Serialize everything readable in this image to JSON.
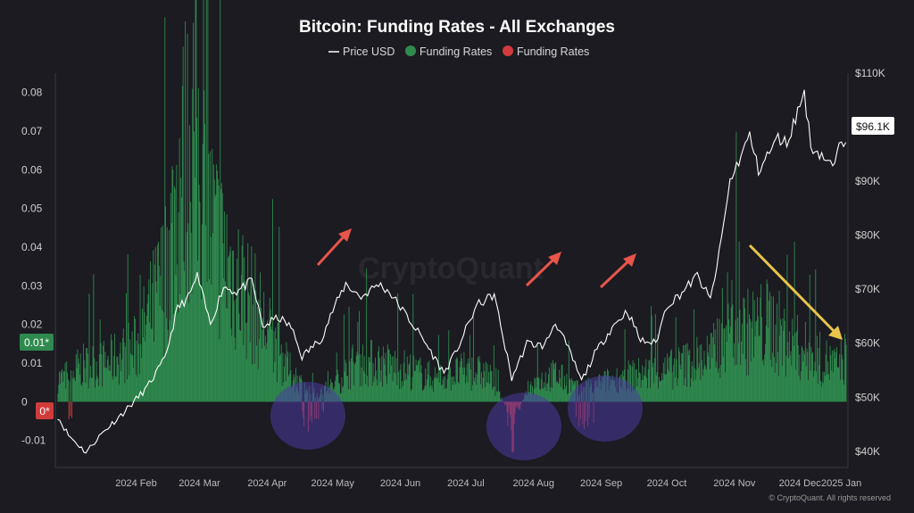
{
  "colors": {
    "background": "#1b1b21",
    "positive": "#2f8a4e",
    "negative": "#d13b3b",
    "price": "#ffffff",
    "circle": "#4b3aa3",
    "red_arrow": "#e8554a",
    "yellow_arrow": "#e8c44a"
  },
  "watermark": "CryptoQuant",
  "copyright": "© CryptoQuant. All rights reserved",
  "chart_data": {
    "type": "bar",
    "title": "Bitcoin: Funding Rates - All Exchanges",
    "legend": {
      "placement": "top-center",
      "items": [
        {
          "label": "Price USD",
          "marker": "line",
          "color": "#ffffff"
        },
        {
          "label": "Funding Rates",
          "marker": "dot",
          "color": "#2f8a4e"
        },
        {
          "label": "Funding Rates",
          "marker": "dot",
          "color": "#d13b3b"
        }
      ]
    },
    "x_ticks": [
      "2024 Feb",
      "2024 Mar",
      "2024 Apr",
      "2024 May",
      "2024 Jun",
      "2024 Jul",
      "2024 Aug",
      "2024 Sep",
      "2024 Oct",
      "2024 Nov",
      "2024 Dec",
      "2025 Jan"
    ],
    "y_left": {
      "ticks": [
        "0.08",
        "0.07",
        "0.06",
        "0.05",
        "0.04",
        "0.03",
        "0.02",
        "0.01",
        "0",
        "-0.01"
      ],
      "range": [
        -0.017,
        0.085
      ]
    },
    "y_right": {
      "ticks": [
        "$110K",
        "$100K",
        "$90K",
        "$80K",
        "$70K",
        "$60K",
        "$50K",
        "$40K"
      ],
      "range": [
        37000,
        110000
      ]
    },
    "left_badges": {
      "positive": "0.01*",
      "negative": "0*"
    },
    "price_badge": "$96.1K",
    "funding_rates_keypoints": [
      [
        "2024-01-12",
        0.006
      ],
      [
        "2024-01-20",
        0.009
      ],
      [
        "2024-02-01",
        0.01
      ],
      [
        "2024-02-15",
        0.014
      ],
      [
        "2024-02-28",
        0.032
      ],
      [
        "2024-03-05",
        0.055
      ],
      [
        "2024-03-12",
        0.07
      ],
      [
        "2024-03-20",
        0.045
      ],
      [
        "2024-03-28",
        0.035
      ],
      [
        "2024-04-05",
        0.028
      ],
      [
        "2024-04-15",
        0.018
      ],
      [
        "2024-04-25",
        0.008
      ],
      [
        "2024-05-05",
        0.002
      ],
      [
        "2024-05-15",
        0.004
      ],
      [
        "2024-05-25",
        0.01
      ],
      [
        "2024-06-05",
        0.01
      ],
      [
        "2024-06-20",
        0.008
      ],
      [
        "2024-07-01",
        0.006
      ],
      [
        "2024-07-15",
        0.008
      ],
      [
        "2024-07-25",
        0.007
      ],
      [
        "2024-08-05",
        -0.004
      ],
      [
        "2024-08-15",
        0.005
      ],
      [
        "2024-08-25",
        0.007
      ],
      [
        "2024-09-05",
        0.003
      ],
      [
        "2024-09-15",
        0.005
      ],
      [
        "2024-10-01",
        0.007
      ],
      [
        "2024-10-15",
        0.008
      ],
      [
        "2024-10-25",
        0.01
      ],
      [
        "2024-11-05",
        0.012
      ],
      [
        "2024-11-12",
        0.022
      ],
      [
        "2024-11-20",
        0.018
      ],
      [
        "2024-12-01",
        0.02
      ],
      [
        "2024-12-10",
        0.015
      ],
      [
        "2024-12-20",
        0.012
      ],
      [
        "2025-01-01",
        0.009
      ],
      [
        "2025-01-05",
        0.012
      ]
    ],
    "price_keypoints": [
      [
        "2024-01-10",
        46500
      ],
      [
        "2024-01-15",
        43000
      ],
      [
        "2024-01-23",
        39800
      ],
      [
        "2024-01-30",
        43200
      ],
      [
        "2024-02-10",
        47500
      ],
      [
        "2024-02-20",
        51800
      ],
      [
        "2024-02-28",
        57000
      ],
      [
        "2024-03-05",
        66500
      ],
      [
        "2024-03-10",
        68500
      ],
      [
        "2024-03-14",
        72500
      ],
      [
        "2024-03-20",
        63500
      ],
      [
        "2024-03-26",
        70500
      ],
      [
        "2024-04-01",
        69500
      ],
      [
        "2024-04-08",
        71500
      ],
      [
        "2024-04-13",
        63000
      ],
      [
        "2024-04-20",
        64800
      ],
      [
        "2024-04-26",
        63000
      ],
      [
        "2024-05-01",
        57500
      ],
      [
        "2024-05-10",
        61000
      ],
      [
        "2024-05-15",
        66000
      ],
      [
        "2024-05-21",
        71000
      ],
      [
        "2024-05-28",
        68500
      ],
      [
        "2024-06-05",
        71000
      ],
      [
        "2024-06-10",
        69500
      ],
      [
        "2024-06-18",
        65000
      ],
      [
        "2024-06-25",
        61000
      ],
      [
        "2024-07-05",
        54500
      ],
      [
        "2024-07-10",
        58000
      ],
      [
        "2024-07-20",
        67000
      ],
      [
        "2024-07-28",
        69000
      ],
      [
        "2024-08-05",
        53500
      ],
      [
        "2024-08-12",
        60000
      ],
      [
        "2024-08-20",
        59500
      ],
      [
        "2024-08-25",
        64000
      ],
      [
        "2024-09-01",
        58000
      ],
      [
        "2024-09-06",
        53000
      ],
      [
        "2024-09-12",
        58000
      ],
      [
        "2024-09-20",
        63000
      ],
      [
        "2024-09-27",
        66000
      ],
      [
        "2024-10-03",
        60500
      ],
      [
        "2024-10-10",
        60000
      ],
      [
        "2024-10-15",
        67000
      ],
      [
        "2024-10-21",
        69000
      ],
      [
        "2024-10-29",
        72500
      ],
      [
        "2024-11-04",
        68000
      ],
      [
        "2024-11-08",
        76500
      ],
      [
        "2024-11-13",
        90000
      ],
      [
        "2024-11-22",
        98500
      ],
      [
        "2024-11-26",
        92000
      ],
      [
        "2024-12-05",
        98000
      ],
      [
        "2024-12-09",
        97000
      ],
      [
        "2024-12-17",
        106500
      ],
      [
        "2024-12-20",
        96500
      ],
      [
        "2024-12-26",
        94500
      ],
      [
        "2024-12-30",
        92500
      ],
      [
        "2025-01-02",
        96000
      ],
      [
        "2025-01-05",
        98000
      ]
    ],
    "annotations": [
      {
        "type": "circle",
        "near": "2024-05"
      },
      {
        "type": "circle",
        "near": "2024-08"
      },
      {
        "type": "circle",
        "near": "2024-09"
      },
      {
        "type": "arrow",
        "direction": "up",
        "near": "2024-05"
      },
      {
        "type": "arrow",
        "direction": "up",
        "near": "2024-08"
      },
      {
        "type": "arrow",
        "direction": "up",
        "near": "2024-09"
      },
      {
        "type": "arrow",
        "direction": "down",
        "near": "2024-12"
      }
    ]
  }
}
